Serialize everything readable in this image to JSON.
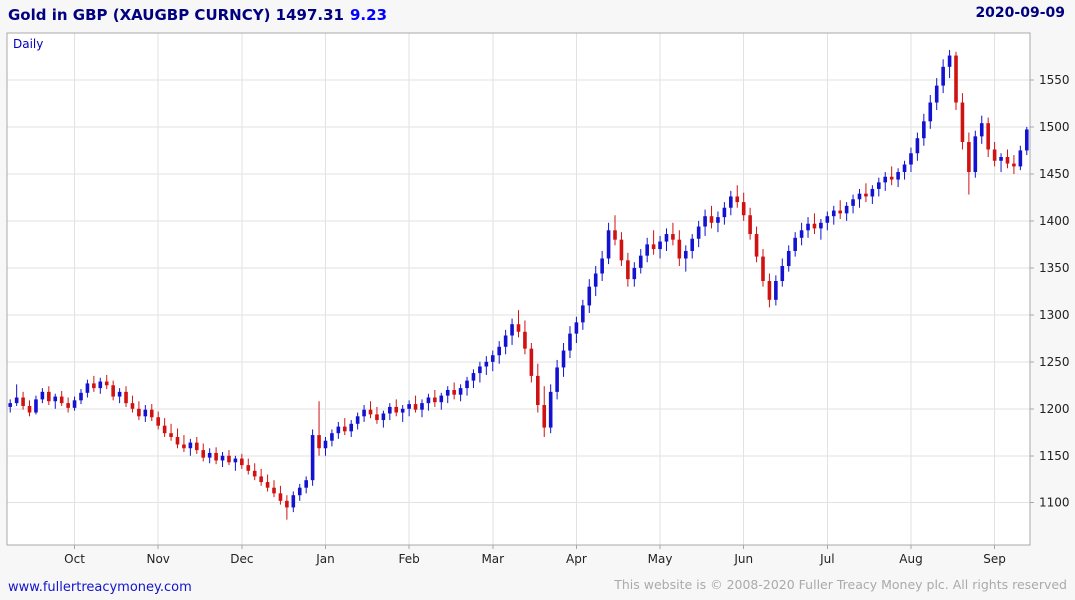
{
  "header": {
    "title": "Gold in GBP (XAUGBP CURNCY) 1497.31",
    "change": "9.23",
    "date": "2020-09-09"
  },
  "chart_label": "Daily",
  "footer": {
    "link": "www.fullertreacymoney.com",
    "copyright": "This website is © 2008-2020 Fuller Treacy Money plc. All rights reserved"
  },
  "chart_data": {
    "type": "candlestick",
    "title": "Gold in GBP (XAUGBP CURNCY)",
    "timeframe": "Daily",
    "last_price": 1497.31,
    "change": 9.23,
    "date": "2020-09-09",
    "x_tick_labels": [
      "Oct",
      "Nov",
      "Dec",
      "Jan",
      "Feb",
      "Mar",
      "Apr",
      "May",
      "Jun",
      "Jul",
      "Aug",
      "Sep"
    ],
    "month_tick_indices": [
      10,
      23,
      36,
      49,
      62,
      75,
      88,
      101,
      114,
      127,
      140,
      153
    ],
    "y_ticks": [
      1100,
      1150,
      1200,
      1250,
      1300,
      1350,
      1400,
      1450,
      1500,
      1550
    ],
    "ylim": [
      1055,
      1600
    ],
    "grid": true,
    "legend": "none",
    "colors": {
      "up": "#1212d0",
      "down": "#d01212",
      "grid": "#e2e2e2",
      "border": "#a8a8a8",
      "axis_text": "#222222",
      "plot_bg": "#ffffff"
    },
    "candles": [
      [
        1202,
        1210,
        1196,
        1206
      ],
      [
        1206,
        1226,
        1203,
        1212
      ],
      [
        1212,
        1218,
        1199,
        1203
      ],
      [
        1203,
        1209,
        1192,
        1196
      ],
      [
        1196,
        1214,
        1194,
        1210
      ],
      [
        1210,
        1222,
        1206,
        1218
      ],
      [
        1218,
        1224,
        1204,
        1208
      ],
      [
        1208,
        1216,
        1200,
        1213
      ],
      [
        1213,
        1219,
        1203,
        1206
      ],
      [
        1206,
        1212,
        1196,
        1201
      ],
      [
        1201,
        1213,
        1198,
        1209
      ],
      [
        1209,
        1221,
        1205,
        1217
      ],
      [
        1217,
        1231,
        1212,
        1227
      ],
      [
        1227,
        1235,
        1218,
        1222
      ],
      [
        1222,
        1233,
        1216,
        1229
      ],
      [
        1229,
        1236,
        1221,
        1225
      ],
      [
        1225,
        1230,
        1209,
        1213
      ],
      [
        1213,
        1222,
        1206,
        1218
      ],
      [
        1218,
        1224,
        1202,
        1206
      ],
      [
        1206,
        1214,
        1196,
        1200
      ],
      [
        1200,
        1208,
        1188,
        1192
      ],
      [
        1192,
        1204,
        1186,
        1199
      ],
      [
        1199,
        1205,
        1187,
        1191
      ],
      [
        1191,
        1197,
        1178,
        1182
      ],
      [
        1182,
        1190,
        1170,
        1174
      ],
      [
        1174,
        1184,
        1166,
        1170
      ],
      [
        1170,
        1179,
        1158,
        1162
      ],
      [
        1162,
        1172,
        1154,
        1158
      ],
      [
        1158,
        1168,
        1150,
        1164
      ],
      [
        1164,
        1170,
        1152,
        1156
      ],
      [
        1156,
        1163,
        1144,
        1148
      ],
      [
        1148,
        1158,
        1142,
        1153
      ],
      [
        1153,
        1159,
        1141,
        1145
      ],
      [
        1145,
        1154,
        1138,
        1150
      ],
      [
        1150,
        1156,
        1140,
        1143
      ],
      [
        1143,
        1150,
        1134,
        1147
      ],
      [
        1147,
        1152,
        1136,
        1140
      ],
      [
        1140,
        1147,
        1130,
        1134
      ],
      [
        1134,
        1142,
        1124,
        1128
      ],
      [
        1128,
        1136,
        1118,
        1122
      ],
      [
        1122,
        1130,
        1112,
        1116
      ],
      [
        1116,
        1124,
        1106,
        1110
      ],
      [
        1110,
        1118,
        1098,
        1102
      ],
      [
        1102,
        1108,
        1082,
        1095
      ],
      [
        1095,
        1112,
        1090,
        1108
      ],
      [
        1108,
        1120,
        1102,
        1116
      ],
      [
        1116,
        1128,
        1110,
        1124
      ],
      [
        1124,
        1178,
        1118,
        1172
      ],
      [
        1172,
        1208,
        1150,
        1158
      ],
      [
        1158,
        1170,
        1150,
        1166
      ],
      [
        1166,
        1178,
        1160,
        1174
      ],
      [
        1174,
        1186,
        1168,
        1181
      ],
      [
        1181,
        1190,
        1172,
        1176
      ],
      [
        1176,
        1188,
        1170,
        1184
      ],
      [
        1184,
        1196,
        1178,
        1192
      ],
      [
        1192,
        1204,
        1186,
        1199
      ],
      [
        1199,
        1208,
        1190,
        1194
      ],
      [
        1194,
        1202,
        1184,
        1188
      ],
      [
        1188,
        1198,
        1180,
        1195
      ],
      [
        1195,
        1206,
        1188,
        1202
      ],
      [
        1202,
        1210,
        1192,
        1196
      ],
      [
        1196,
        1204,
        1186,
        1200
      ],
      [
        1200,
        1209,
        1192,
        1205
      ],
      [
        1205,
        1214,
        1196,
        1199
      ],
      [
        1199,
        1210,
        1191,
        1206
      ],
      [
        1206,
        1216,
        1198,
        1212
      ],
      [
        1212,
        1220,
        1202,
        1207
      ],
      [
        1207,
        1217,
        1199,
        1214
      ],
      [
        1214,
        1224,
        1206,
        1220
      ],
      [
        1220,
        1228,
        1210,
        1215
      ],
      [
        1215,
        1226,
        1208,
        1222
      ],
      [
        1222,
        1234,
        1214,
        1230
      ],
      [
        1230,
        1242,
        1222,
        1238
      ],
      [
        1238,
        1250,
        1228,
        1245
      ],
      [
        1245,
        1256,
        1236,
        1250
      ],
      [
        1250,
        1262,
        1240,
        1257
      ],
      [
        1257,
        1272,
        1248,
        1266
      ],
      [
        1266,
        1284,
        1258,
        1278
      ],
      [
        1278,
        1296,
        1268,
        1290
      ],
      [
        1290,
        1305,
        1276,
        1282
      ],
      [
        1282,
        1294,
        1258,
        1264
      ],
      [
        1264,
        1270,
        1228,
        1235
      ],
      [
        1235,
        1248,
        1196,
        1204
      ],
      [
        1204,
        1224,
        1170,
        1180
      ],
      [
        1180,
        1226,
        1174,
        1218
      ],
      [
        1218,
        1252,
        1210,
        1244
      ],
      [
        1244,
        1270,
        1234,
        1262
      ],
      [
        1262,
        1288,
        1254,
        1280
      ],
      [
        1280,
        1298,
        1270,
        1292
      ],
      [
        1292,
        1316,
        1284,
        1310
      ],
      [
        1310,
        1338,
        1302,
        1330
      ],
      [
        1330,
        1352,
        1320,
        1344
      ],
      [
        1344,
        1368,
        1336,
        1360
      ],
      [
        1360,
        1398,
        1354,
        1390
      ],
      [
        1390,
        1406,
        1374,
        1380
      ],
      [
        1380,
        1388,
        1352,
        1358
      ],
      [
        1358,
        1366,
        1330,
        1338
      ],
      [
        1338,
        1356,
        1330,
        1350
      ],
      [
        1350,
        1370,
        1344,
        1363
      ],
      [
        1363,
        1382,
        1356,
        1375
      ],
      [
        1375,
        1390,
        1364,
        1370
      ],
      [
        1370,
        1384,
        1360,
        1378
      ],
      [
        1378,
        1392,
        1368,
        1386
      ],
      [
        1386,
        1398,
        1374,
        1380
      ],
      [
        1380,
        1390,
        1352,
        1360
      ],
      [
        1360,
        1374,
        1346,
        1368
      ],
      [
        1368,
        1386,
        1360,
        1381
      ],
      [
        1381,
        1400,
        1372,
        1394
      ],
      [
        1394,
        1412,
        1384,
        1405
      ],
      [
        1405,
        1416,
        1392,
        1398
      ],
      [
        1398,
        1410,
        1388,
        1404
      ],
      [
        1404,
        1420,
        1396,
        1414
      ],
      [
        1414,
        1432,
        1406,
        1426
      ],
      [
        1426,
        1438,
        1414,
        1420
      ],
      [
        1420,
        1430,
        1400,
        1406
      ],
      [
        1406,
        1414,
        1380,
        1386
      ],
      [
        1386,
        1394,
        1356,
        1362
      ],
      [
        1362,
        1370,
        1330,
        1336
      ],
      [
        1336,
        1344,
        1308,
        1316
      ],
      [
        1316,
        1342,
        1310,
        1336
      ],
      [
        1336,
        1360,
        1330,
        1352
      ],
      [
        1352,
        1374,
        1346,
        1368
      ],
      [
        1368,
        1388,
        1362,
        1382
      ],
      [
        1382,
        1398,
        1374,
        1390
      ],
      [
        1390,
        1404,
        1382,
        1397
      ],
      [
        1397,
        1408,
        1386,
        1392
      ],
      [
        1392,
        1402,
        1380,
        1398
      ],
      [
        1398,
        1410,
        1390,
        1405
      ],
      [
        1405,
        1416,
        1396,
        1411
      ],
      [
        1411,
        1422,
        1402,
        1408
      ],
      [
        1408,
        1420,
        1400,
        1416
      ],
      [
        1416,
        1428,
        1408,
        1423
      ],
      [
        1423,
        1434,
        1414,
        1429
      ],
      [
        1429,
        1440,
        1420,
        1426
      ],
      [
        1426,
        1438,
        1418,
        1434
      ],
      [
        1434,
        1446,
        1426,
        1441
      ],
      [
        1441,
        1452,
        1432,
        1447
      ],
      [
        1447,
        1458,
        1438,
        1444
      ],
      [
        1444,
        1456,
        1436,
        1452
      ],
      [
        1452,
        1464,
        1444,
        1460
      ],
      [
        1460,
        1478,
        1452,
        1472
      ],
      [
        1472,
        1494,
        1464,
        1488
      ],
      [
        1488,
        1514,
        1480,
        1506
      ],
      [
        1506,
        1534,
        1498,
        1526
      ],
      [
        1526,
        1552,
        1518,
        1544
      ],
      [
        1544,
        1572,
        1536,
        1564
      ],
      [
        1564,
        1582,
        1552,
        1576
      ],
      [
        1576,
        1580,
        1518,
        1526
      ],
      [
        1526,
        1536,
        1476,
        1484
      ],
      [
        1484,
        1494,
        1428,
        1452
      ],
      [
        1452,
        1496,
        1446,
        1490
      ],
      [
        1490,
        1512,
        1482,
        1504
      ],
      [
        1504,
        1510,
        1468,
        1476
      ],
      [
        1476,
        1484,
        1458,
        1464
      ],
      [
        1464,
        1472,
        1452,
        1468
      ],
      [
        1468,
        1476,
        1456,
        1461
      ],
      [
        1461,
        1470,
        1450,
        1458
      ],
      [
        1458,
        1480,
        1454,
        1475
      ],
      [
        1475,
        1500,
        1470,
        1497.31
      ]
    ]
  }
}
